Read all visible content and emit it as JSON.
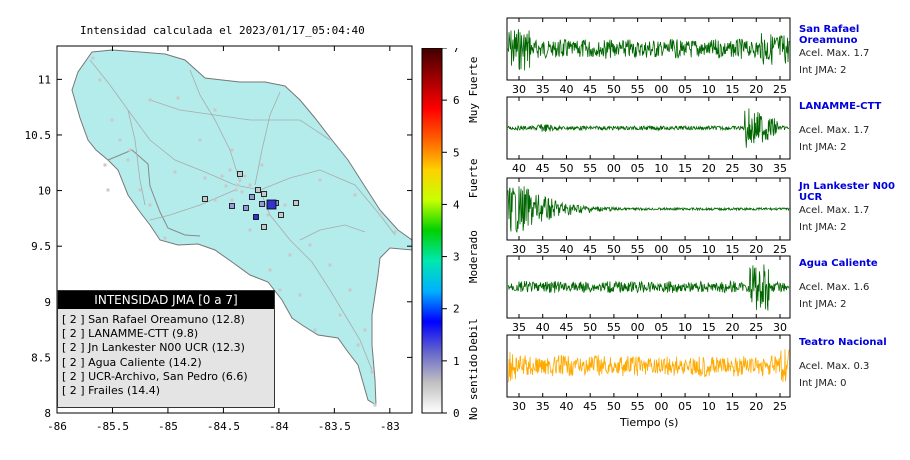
{
  "map": {
    "title": "Intensidad calculada el 2023/01/17_05:04:40",
    "x_ticks": [
      "-86",
      "-85.5",
      "-85",
      "-84.5",
      "-84",
      "-83.5",
      "-83"
    ],
    "y_ticks": [
      "11",
      "10.5",
      "10",
      "9.5",
      "9",
      "8.5",
      "8"
    ],
    "xlim": [
      -86,
      -82.8
    ],
    "ylim": [
      8,
      11.3
    ],
    "land_color": "#b4ecec",
    "station_marker_colors": [
      "#c8c8c8",
      "#9a9ad8",
      "#3333cc"
    ]
  },
  "legend": {
    "header": "INTENSIDAD JMA [0 a 7]",
    "items": [
      "[ 2 ]  San Rafael Oreamuno (12.8)",
      "[ 2 ]  LANAMME-CTT (9.8)",
      "[ 2 ]  Jn Lankester N00 UCR (12.3)",
      "[ 2 ]  Agua Caliente (14.2)",
      "[ 2 ]  UCR-Archivo, San Pedro (6.6)",
      "[ 2 ]  Frailes (14.4)"
    ]
  },
  "colorbar": {
    "ticks": [
      "0",
      "1",
      "2",
      "3",
      "4",
      "5",
      "6",
      "7"
    ],
    "categories": [
      "No sentido",
      "Debil",
      "Moderado",
      "Fuerte",
      "Muy Fuerte"
    ],
    "stops": [
      "#ffffff",
      "#c0c0c0",
      "#6666cc",
      "#0000ff",
      "#00b0ff",
      "#00e8b0",
      "#00d000",
      "#c8ff00",
      "#ffd000",
      "#ff6000",
      "#ff0000",
      "#a00000",
      "#400000"
    ]
  },
  "waveforms": {
    "xlabel": "Tiempo (s)",
    "panels": [
      {
        "name": "San Rafael Oreamuno",
        "acel": "Acel. Max. 1.7",
        "int": "Int JMA: 2",
        "color": "#006600",
        "ticks": [
          "30",
          "35",
          "40",
          "45",
          "50",
          "55",
          "00",
          "05",
          "10",
          "15",
          "20",
          "25"
        ],
        "pattern": "burst-start"
      },
      {
        "name": "LANAMME-CTT",
        "acel": "Acel. Max. 1.7",
        "int": "Int JMA: 2",
        "color": "#006600",
        "ticks": [
          "40",
          "45",
          "50",
          "55",
          "00",
          "05",
          "10",
          "15",
          "20",
          "25",
          "30",
          "35"
        ],
        "pattern": "burst-end"
      },
      {
        "name": "Jn Lankester N00 UCR",
        "acel": "Acel. Max. 1.7",
        "int": "Int JMA: 2",
        "color": "#006600",
        "ticks": [
          "30",
          "35",
          "40",
          "45",
          "50",
          "55",
          "00",
          "05",
          "10",
          "15",
          "20",
          "25"
        ],
        "pattern": "decay"
      },
      {
        "name": "Agua Caliente",
        "acel": "Acel. Max. 1.6",
        "int": "Int JMA: 2",
        "color": "#006600",
        "ticks": [
          "35",
          "40",
          "45",
          "50",
          "55",
          "00",
          "05",
          "10",
          "15",
          "20",
          "25",
          "30"
        ],
        "pattern": "burst-late"
      },
      {
        "name": "Teatro Nacional",
        "acel": "Acel. Max. 0.3",
        "int": "Int JMA: 0",
        "color": "#ffaa00",
        "ticks": [
          "30",
          "35",
          "40",
          "45",
          "50",
          "55",
          "00",
          "05",
          "10",
          "15",
          "20",
          "25"
        ],
        "pattern": "noise"
      }
    ]
  },
  "chart_data": {
    "type": "scatter",
    "title": "Intensidad calculada el 2023/01/17_05:04:40",
    "xlim": [
      -86,
      -82.8
    ],
    "ylim": [
      8,
      11.3
    ],
    "series": [
      {
        "name": "INTENSIDAD JMA [0 a 7]",
        "values": [
          2,
          2,
          2,
          2,
          2,
          2
        ]
      }
    ],
    "categories": [
      "San Rafael Oreamuno",
      "LANAMME-CTT",
      "Jn Lankester N00 UCR",
      "Agua Caliente",
      "UCR-Archivo, San Pedro",
      "Frailes"
    ],
    "acceleration": [
      12.8,
      9.8,
      12.3,
      14.2,
      6.6,
      14.4
    ],
    "colorbar_range": [
      0,
      7
    ]
  }
}
